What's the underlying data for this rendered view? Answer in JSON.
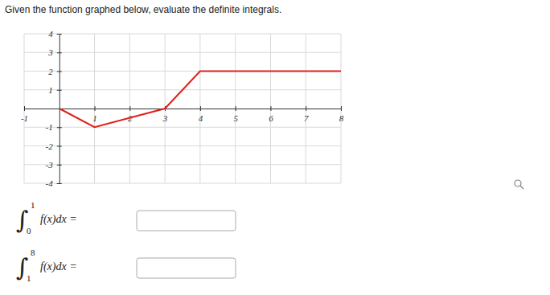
{
  "header": {
    "instruction": "Given the function graphed below, evaluate the definite integrals."
  },
  "chart_data": {
    "type": "line",
    "x": [
      0,
      1,
      3,
      4,
      8
    ],
    "values": [
      0,
      -1,
      0,
      2,
      2
    ],
    "color": "#e0201a",
    "xlim": [
      -1,
      8
    ],
    "ylim": [
      -4,
      4
    ],
    "xticks": [
      -1,
      1,
      2,
      3,
      4,
      5,
      6,
      7,
      8
    ],
    "yticks": [
      -4,
      -3,
      -2,
      -1,
      1,
      2,
      3,
      4
    ],
    "grid": true
  },
  "integrals": {
    "symbol": "∫",
    "items": [
      {
        "lower": 0,
        "upper": 1,
        "expression": "f(x)dx ="
      },
      {
        "lower": 1,
        "upper": 8,
        "expression": "f(x)dx ="
      }
    ]
  }
}
